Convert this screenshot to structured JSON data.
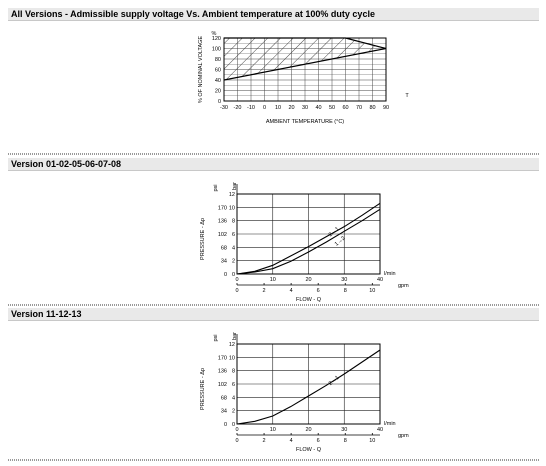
{
  "sections": [
    {
      "title": "All Versions - Admissible supply voltage Vs. Ambient temperature at 100% duty cycle"
    },
    {
      "title": "Version 01-02-05-06-07-08"
    },
    {
      "title": "Version 11-12-13"
    }
  ],
  "chart_data": [
    {
      "type": "area",
      "title": "",
      "xlabel": "AMBIENT TEMPERATURE (°C)",
      "xunit": "T",
      "ylabel": "% OF NOMINAL VOLTAGE",
      "yunit": "%",
      "x_ticks": [
        "-30",
        "-20",
        "-10",
        "0",
        "10",
        "20",
        "30",
        "40",
        "50",
        "60",
        "70",
        "80",
        "90"
      ],
      "y_ticks": [
        "0",
        "20",
        "40",
        "60",
        "80",
        "100",
        "120"
      ],
      "xlim": [
        -30,
        90
      ],
      "ylim": [
        0,
        120
      ],
      "grid": true,
      "series": [
        {
          "values": [
            [
              -30,
              120
            ],
            [
              60,
              120
            ],
            [
              90,
              100
            ]
          ]
        },
        {
          "values": [
            [
              -30,
              40
            ],
            [
              90,
              100
            ]
          ]
        }
      ]
    },
    {
      "type": "line",
      "title": "",
      "xlabel": "FLOW - Q",
      "ylabel": "PRESSURE - Δp",
      "y_primary_unit": "psi",
      "y_secondary_unit": "bar",
      "x_primary_unit": "l/min",
      "x_secondary_unit": "gpm",
      "y_primary_ticks": [
        "0",
        "34",
        "68",
        "102",
        "136",
        "170"
      ],
      "y_secondary_ticks": [
        "0",
        "2",
        "4",
        "6",
        "8",
        "10",
        "12"
      ],
      "x_primary_ticks": [
        "0",
        "10",
        "20",
        "30",
        "40"
      ],
      "x_secondary_ticks": [
        "0",
        "2",
        "4",
        "6",
        "8",
        "10"
      ],
      "xlim": [
        0,
        40
      ],
      "ylim": [
        0,
        12
      ],
      "grid": true,
      "series": [
        {
          "name": "2→1",
          "x": [
            0,
            5,
            10,
            15,
            20,
            25,
            30,
            35,
            40
          ],
          "values": [
            0,
            0.4,
            1.3,
            2.7,
            4.1,
            5.6,
            7.1,
            8.8,
            10.6
          ]
        },
        {
          "name": "1→2",
          "x": [
            0,
            5,
            10,
            15,
            20,
            25,
            30,
            35,
            40
          ],
          "values": [
            0,
            0.3,
            0.8,
            1.9,
            3.3,
            4.8,
            6.4,
            8.0,
            9.7
          ]
        }
      ]
    },
    {
      "type": "line",
      "title": "",
      "xlabel": "FLOW - Q",
      "ylabel": "PRESSURE - Δp",
      "y_primary_unit": "psi",
      "y_secondary_unit": "bar",
      "x_primary_unit": "l/min",
      "x_secondary_unit": "gpm",
      "y_primary_ticks": [
        "0",
        "34",
        "68",
        "102",
        "136",
        "170"
      ],
      "y_secondary_ticks": [
        "0",
        "2",
        "4",
        "6",
        "8",
        "10",
        "12"
      ],
      "x_primary_ticks": [
        "0",
        "10",
        "20",
        "30",
        "40"
      ],
      "x_secondary_ticks": [
        "0",
        "2",
        "4",
        "6",
        "8",
        "10"
      ],
      "xlim": [
        0,
        40
      ],
      "ylim": [
        0,
        12
      ],
      "grid": true,
      "series": [
        {
          "name": "2→1",
          "x": [
            0,
            5,
            10,
            15,
            20,
            25,
            30,
            35,
            40
          ],
          "values": [
            0,
            0.4,
            1.2,
            2.6,
            4.2,
            5.8,
            7.5,
            9.3,
            11.1
          ]
        }
      ]
    }
  ]
}
